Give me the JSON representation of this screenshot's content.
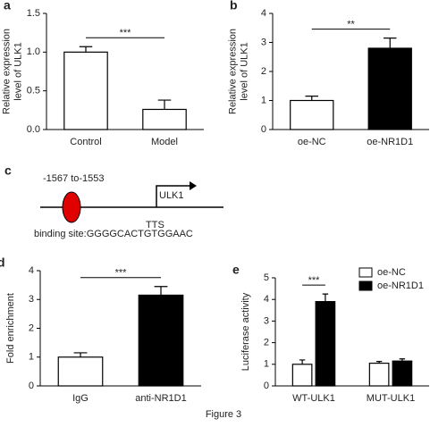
{
  "chart_data": [
    {
      "type": "bar",
      "label": "a",
      "ylabel": [
        "Relative expression",
        "level of ULK1"
      ],
      "categories": [
        "Control",
        "Model"
      ],
      "values": [
        1.0,
        0.26
      ],
      "errors": [
        0.07,
        0.12
      ],
      "colors": [
        "#ffffff",
        "#ffffff"
      ],
      "ylim": [
        0,
        1.5
      ],
      "yticks": [
        {
          "value": 0,
          "label": "0.0"
        },
        {
          "value": 0.5,
          "label": "0.5"
        },
        {
          "value": 1,
          "label": "1.0"
        },
        {
          "value": 1.5,
          "label": "1.5"
        }
      ],
      "annotation": "***"
    },
    {
      "type": "bar",
      "label": "b",
      "ylabel": [
        "Relative expression",
        "level of ULK1"
      ],
      "categories": [
        "oe-NC",
        "oe-NR1D1"
      ],
      "values": [
        1.0,
        2.8
      ],
      "errors": [
        0.15,
        0.35
      ],
      "colors": [
        "#ffffff",
        "#000000"
      ],
      "ylim": [
        0,
        4
      ],
      "yticks": [
        0,
        1,
        2,
        3,
        4
      ],
      "annotation": "**"
    },
    {
      "type": "bar",
      "label": "d",
      "ylabel": [
        "Fold enrichment"
      ],
      "categories": [
        "IgG",
        "anti-NR1D1"
      ],
      "values": [
        1.0,
        3.15
      ],
      "errors": [
        0.15,
        0.3
      ],
      "colors": [
        "#ffffff",
        "#000000"
      ],
      "ylim": [
        0,
        4
      ],
      "yticks": [
        0,
        1,
        2,
        3,
        4
      ],
      "annotation": "***"
    },
    {
      "type": "grouped_bar",
      "label": "e",
      "ylabel": [
        "Luciferase activity"
      ],
      "categories": [
        "WT-ULK1",
        "MUT-ULK1"
      ],
      "series": [
        {
          "name": "oe-NC",
          "color": "#ffffff",
          "values": [
            1.0,
            1.05
          ],
          "errors": [
            0.2,
            0.08
          ]
        },
        {
          "name": "oe-NR1D1",
          "color": "#000000",
          "values": [
            3.9,
            1.15
          ],
          "errors": [
            0.35,
            0.1
          ]
        }
      ],
      "ylim": [
        0,
        5
      ],
      "yticks": [
        0,
        1,
        2,
        3,
        4,
        5
      ],
      "annotation": "***",
      "legend": "upper right"
    }
  ],
  "diagram": {
    "label": "c",
    "site": "-1567 to-1553",
    "gene": "ULK1",
    "tts": "TTS",
    "binding": "binding site:GGGGCACTGTGGAAC"
  },
  "caption": "Figure 3"
}
